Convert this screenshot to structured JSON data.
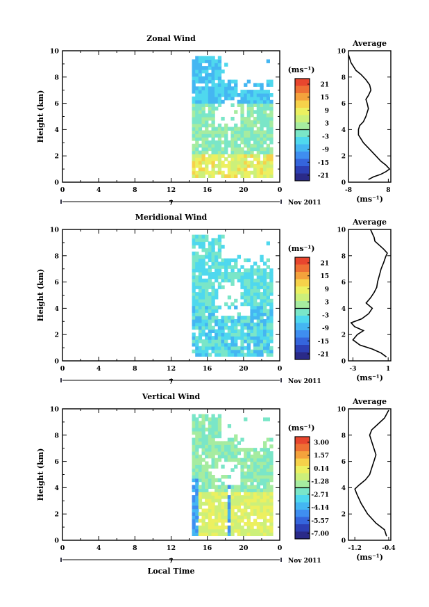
{
  "x_axis": {
    "ticks": [
      "0",
      "4",
      "8",
      "12",
      "16",
      "20",
      "0"
    ],
    "values": [
      0,
      4,
      8,
      12,
      16,
      20,
      24
    ],
    "date_label": "7",
    "month_label": "Nov 2011",
    "xlabel": "Local Time"
  },
  "chart_data": [
    {
      "type": "heatmap",
      "title": "Zonal Wind",
      "xlabel": "",
      "ylabel": "Height (km)",
      "xlim": [
        0,
        24
      ],
      "ylim": [
        0,
        10
      ],
      "yticks": [
        "0",
        "2",
        "4",
        "6",
        "8",
        "10"
      ],
      "data_start_hour": 14.3,
      "colorbar": {
        "unit": "(ms⁻¹)",
        "ticks": [
          "21",
          "15",
          "9",
          "3",
          "-3",
          "-9",
          "-15",
          "-21"
        ],
        "zero_line_between": [
          "3",
          "-3"
        ]
      },
      "average_profile": {
        "type": "line",
        "title": "Average",
        "xlabel": "(ms⁻¹)",
        "xticks": [
          "-8",
          "8"
        ],
        "xlim": [
          -8,
          9
        ],
        "ylim": [
          0,
          10
        ],
        "yticks": [
          "0",
          "2",
          "4",
          "6",
          "8",
          "10"
        ],
        "x": [
          0,
          2,
          5,
          7,
          8.5,
          7,
          5,
          3,
          1,
          -1,
          -2,
          -3,
          -4,
          -4,
          -3.5,
          -2,
          -1,
          -0.5,
          0,
          -0.5,
          -1,
          0,
          1,
          0.5,
          -1,
          -3,
          -5,
          -6,
          -7,
          -7.5,
          -8
        ],
        "y": [
          0.2,
          0.4,
          0.6,
          0.8,
          1.0,
          1.3,
          1.6,
          2.0,
          2.4,
          2.8,
          3.0,
          3.3,
          3.6,
          4.0,
          4.3,
          4.6,
          5.0,
          5.3,
          5.6,
          6.0,
          6.3,
          6.6,
          7.0,
          7.4,
          7.8,
          8.2,
          8.5,
          8.8,
          9.1,
          9.4,
          9.7
        ]
      }
    },
    {
      "type": "heatmap",
      "title": "Meridional Wind",
      "xlabel": "",
      "ylabel": "Height (km)",
      "xlim": [
        0,
        24
      ],
      "ylim": [
        0,
        10
      ],
      "yticks": [
        "0",
        "2",
        "4",
        "6",
        "8",
        "10"
      ],
      "data_start_hour": 14.3,
      "colorbar": {
        "unit": "(ms⁻¹)",
        "ticks": [
          "21",
          "15",
          "9",
          "3",
          "-3",
          "-9",
          "-15",
          "-21"
        ],
        "zero_line_between": [
          "3",
          "-3"
        ]
      },
      "average_profile": {
        "type": "line",
        "title": "Average",
        "xlabel": "(ms⁻¹)",
        "xticks": [
          "-3",
          "1"
        ],
        "xlim": [
          -3.5,
          1.3
        ],
        "ylim": [
          0,
          10
        ],
        "yticks": [
          "0",
          "2",
          "4",
          "6",
          "8",
          "10"
        ],
        "x": [
          0.8,
          0.2,
          -0.8,
          -2.2,
          -3.0,
          -2.5,
          -1.8,
          -2.8,
          -3.2,
          -2.0,
          -1.2,
          -0.8,
          -1.5,
          -1.0,
          -0.6,
          -0.3,
          -0.2,
          0.0,
          0.2,
          0.5,
          0.7,
          0.9,
          0.5,
          0.0,
          -0.5,
          -0.6,
          -0.8,
          -1.0
        ],
        "y": [
          0.3,
          0.6,
          0.9,
          1.2,
          1.6,
          2.0,
          2.3,
          2.6,
          2.9,
          3.2,
          3.6,
          4.0,
          4.4,
          4.8,
          5.2,
          5.6,
          6.0,
          6.5,
          7.0,
          7.5,
          7.9,
          8.2,
          8.5,
          8.8,
          9.1,
          9.4,
          9.7,
          10.0
        ]
      }
    },
    {
      "type": "heatmap",
      "title": "Vertical Wind",
      "xlabel": "Local Time",
      "ylabel": "Height (km)",
      "xlim": [
        0,
        24
      ],
      "ylim": [
        0,
        10
      ],
      "yticks": [
        "0",
        "2",
        "4",
        "6",
        "8",
        "10"
      ],
      "data_start_hour": 14.3,
      "colorbar": {
        "unit": "(ms⁻¹)",
        "ticks": [
          "3.00",
          "1.57",
          "0.14",
          "-1.28",
          "-2.71",
          "-4.14",
          "-5.57",
          "-7.00"
        ],
        "zero_line_between": [
          "0.14",
          "-1.28"
        ]
      },
      "average_profile": {
        "type": "line",
        "title": "Average",
        "xlabel": "(ms⁻¹)",
        "xticks": [
          "-1.2",
          "-0.4"
        ],
        "xlim": [
          -1.35,
          -0.35
        ],
        "ylim": [
          0,
          10
        ],
        "yticks": [
          "0",
          "2",
          "4",
          "6",
          "8",
          "10"
        ],
        "x": [
          -0.45,
          -0.5,
          -0.7,
          -0.9,
          -1.05,
          -1.15,
          -1.2,
          -1.1,
          -0.95,
          -0.85,
          -0.8,
          -0.75,
          -0.7,
          -0.75,
          -0.8,
          -0.85,
          -0.8,
          -0.7,
          -0.6,
          -0.5,
          -0.45,
          -0.4
        ],
        "y": [
          0.3,
          0.8,
          1.3,
          2.0,
          2.8,
          3.5,
          3.9,
          4.2,
          4.6,
          5.0,
          5.5,
          6.0,
          6.5,
          7.0,
          7.5,
          8.0,
          8.4,
          8.7,
          9.0,
          9.3,
          9.6,
          9.9
        ]
      }
    }
  ]
}
